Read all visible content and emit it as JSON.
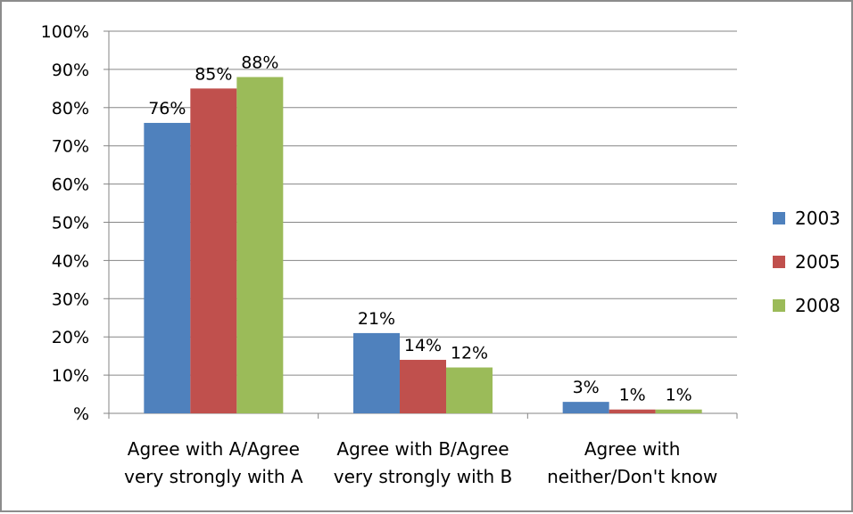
{
  "chart_data": {
    "type": "bar",
    "categories": [
      [
        "Agree with A/Agree",
        "very strongly with A"
      ],
      [
        "Agree with B/Agree",
        "very strongly with B"
      ],
      [
        "Agree with",
        "neither/Don't know"
      ]
    ],
    "series": [
      {
        "name": "2003",
        "color": "#4f81bd",
        "values": [
          76,
          21,
          3
        ],
        "labels": [
          "76%",
          "21%",
          "3%"
        ]
      },
      {
        "name": "2005",
        "color": "#c0504d",
        "values": [
          85,
          14,
          1
        ],
        "labels": [
          "85%",
          "14%",
          "1%"
        ]
      },
      {
        "name": "2008",
        "color": "#9bbb59",
        "values": [
          88,
          12,
          1
        ],
        "labels": [
          "88%",
          "12%",
          "1%"
        ]
      }
    ],
    "yticks": [
      {
        "value": 0,
        "label": "%"
      },
      {
        "value": 10,
        "label": "10%"
      },
      {
        "value": 20,
        "label": "20%"
      },
      {
        "value": 30,
        "label": "30%"
      },
      {
        "value": 40,
        "label": "40%"
      },
      {
        "value": 50,
        "label": "50%"
      },
      {
        "value": 60,
        "label": "60%"
      },
      {
        "value": 70,
        "label": "70%"
      },
      {
        "value": 80,
        "label": "80%"
      },
      {
        "value": 90,
        "label": "90%"
      },
      {
        "value": 100,
        "label": "100%"
      }
    ],
    "ylim": [
      0,
      100
    ],
    "grid": true,
    "legend": "right",
    "title": "",
    "xlabel": "",
    "ylabel": ""
  }
}
